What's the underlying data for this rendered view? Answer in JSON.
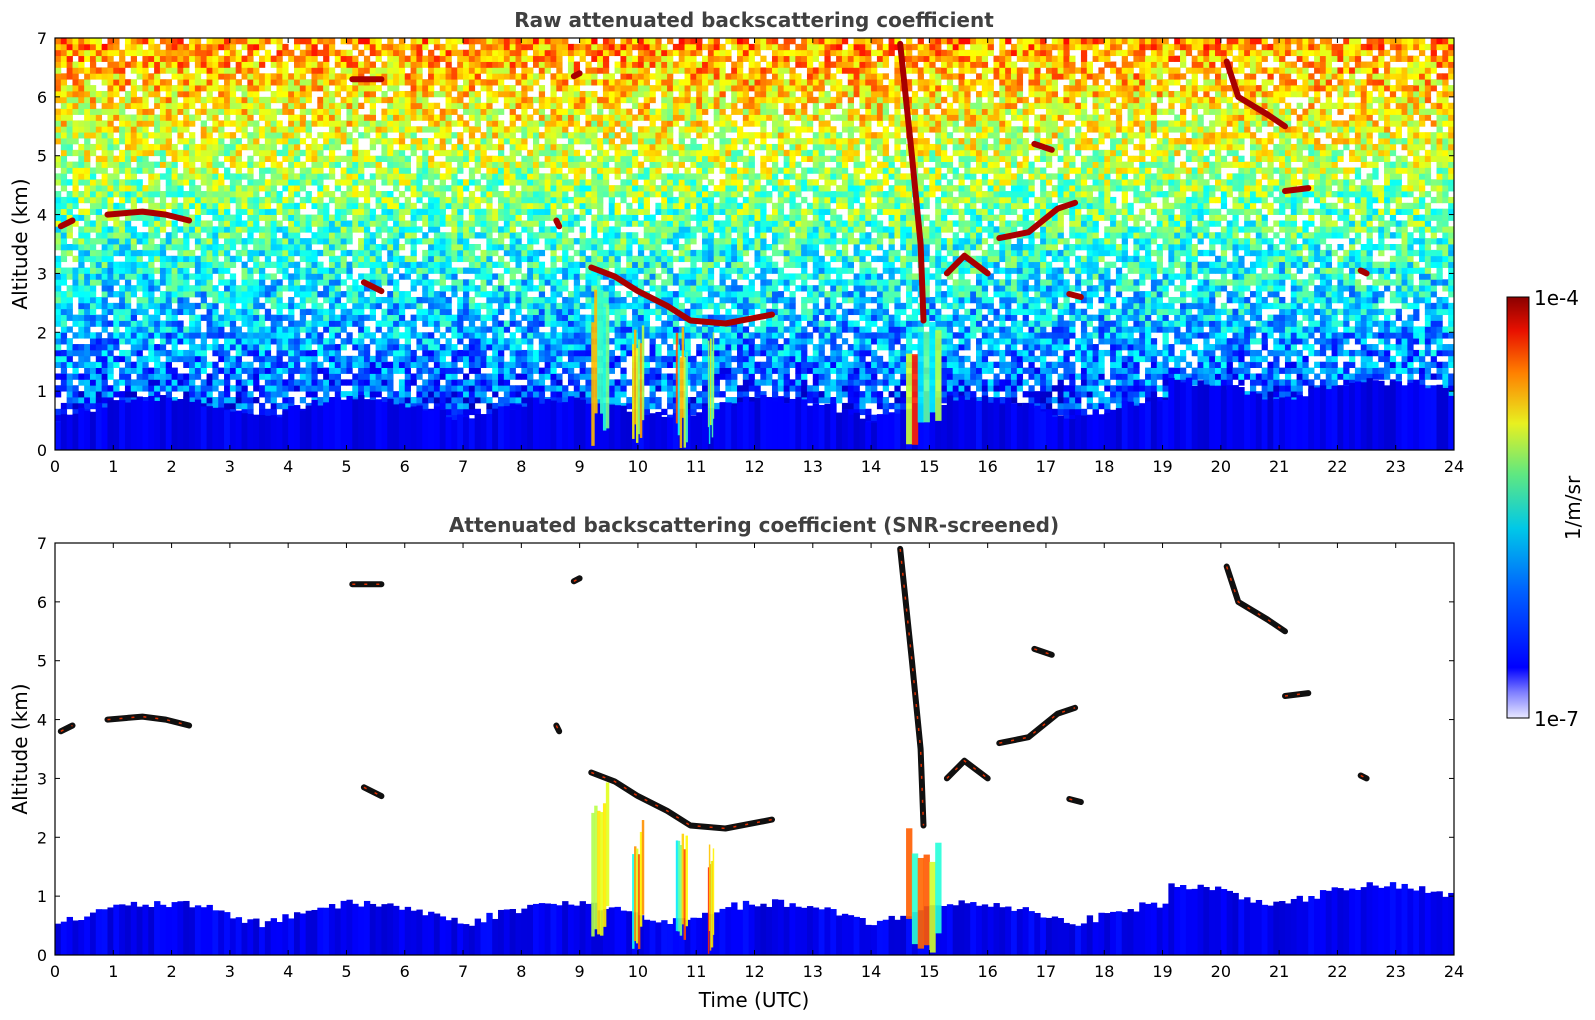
{
  "chart_data": [
    {
      "type": "heatmap",
      "title": "Raw attenuated backscattering coefficient",
      "xlabel": "",
      "ylabel": "Altitude (km)",
      "xlim": [
        0,
        24
      ],
      "ylim": [
        0,
        7
      ],
      "x_ticks": [
        0,
        1,
        2,
        3,
        4,
        5,
        6,
        7,
        8,
        9,
        10,
        11,
        12,
        13,
        14,
        15,
        16,
        17,
        18,
        19,
        20,
        21,
        22,
        23,
        24
      ],
      "y_ticks": [
        0,
        1,
        2,
        3,
        4,
        5,
        6,
        7
      ],
      "screened": false,
      "grid": false,
      "features": [
        {
          "kind": "cloud-layer",
          "points": [
            [
              0.1,
              3.8
            ],
            [
              0.3,
              3.9
            ]
          ]
        },
        {
          "kind": "cloud-layer",
          "points": [
            [
              0.9,
              4.0
            ],
            [
              1.5,
              4.05
            ],
            [
              1.9,
              4.0
            ],
            [
              2.3,
              3.9
            ]
          ]
        },
        {
          "kind": "cloud-layer",
          "points": [
            [
              5.1,
              6.3
            ],
            [
              5.6,
              6.3
            ]
          ]
        },
        {
          "kind": "cloud-layer",
          "points": [
            [
              5.3,
              2.85
            ],
            [
              5.6,
              2.7
            ]
          ]
        },
        {
          "kind": "cloud-layer",
          "points": [
            [
              8.6,
              3.9
            ],
            [
              8.65,
              3.8
            ]
          ]
        },
        {
          "kind": "cloud-layer",
          "points": [
            [
              8.9,
              6.35
            ],
            [
              9.0,
              6.4
            ]
          ]
        },
        {
          "kind": "cloud-layer",
          "points": [
            [
              9.2,
              3.1
            ],
            [
              9.6,
              2.95
            ],
            [
              10.0,
              2.7
            ],
            [
              10.5,
              2.45
            ],
            [
              10.9,
              2.2
            ],
            [
              11.5,
              2.15
            ],
            [
              12.3,
              2.3
            ]
          ]
        },
        {
          "kind": "cloud-layer",
          "points": [
            [
              14.5,
              6.9
            ],
            [
              14.7,
              5.0
            ],
            [
              14.85,
              3.5
            ],
            [
              14.9,
              2.2
            ]
          ]
        },
        {
          "kind": "cloud-layer",
          "points": [
            [
              15.3,
              3.0
            ],
            [
              15.6,
              3.3
            ],
            [
              16.0,
              3.0
            ]
          ]
        },
        {
          "kind": "cloud-layer",
          "points": [
            [
              16.2,
              3.6
            ],
            [
              16.7,
              3.7
            ],
            [
              17.2,
              4.1
            ],
            [
              17.5,
              4.2
            ]
          ]
        },
        {
          "kind": "cloud-layer",
          "points": [
            [
              16.8,
              5.2
            ],
            [
              17.1,
              5.1
            ]
          ]
        },
        {
          "kind": "cloud-layer",
          "points": [
            [
              17.4,
              2.65
            ],
            [
              17.6,
              2.6
            ]
          ]
        },
        {
          "kind": "cloud-layer",
          "points": [
            [
              20.1,
              6.6
            ],
            [
              20.3,
              6.0
            ],
            [
              20.8,
              5.7
            ],
            [
              21.1,
              5.5
            ]
          ]
        },
        {
          "kind": "cloud-layer",
          "points": [
            [
              21.1,
              4.4
            ],
            [
              21.5,
              4.45
            ]
          ]
        },
        {
          "kind": "cloud-layer",
          "points": [
            [
              22.4,
              3.05
            ],
            [
              22.5,
              3.0
            ]
          ]
        },
        {
          "kind": "precipitation",
          "x_range": [
            9.2,
            9.5
          ],
          "top": 3.0
        },
        {
          "kind": "precipitation",
          "x_range": [
            9.9,
            10.1
          ],
          "top": 2.3
        },
        {
          "kind": "precipitation",
          "x_range": [
            10.65,
            10.85
          ],
          "top": 2.2
        },
        {
          "kind": "precipitation",
          "x_range": [
            11.2,
            11.3
          ],
          "top": 2.1
        },
        {
          "kind": "precipitation",
          "x_range": [
            14.6,
            15.2
          ],
          "top": 2.2
        }
      ]
    },
    {
      "type": "heatmap",
      "title": "Attenuated backscattering coefficient (SNR-screened)",
      "xlabel": "Time (UTC)",
      "ylabel": "Altitude (km)",
      "xlim": [
        0,
        24
      ],
      "ylim": [
        0,
        7
      ],
      "x_ticks": [
        0,
        1,
        2,
        3,
        4,
        5,
        6,
        7,
        8,
        9,
        10,
        11,
        12,
        13,
        14,
        15,
        16,
        17,
        18,
        19,
        20,
        21,
        22,
        23,
        24
      ],
      "y_ticks": [
        0,
        1,
        2,
        3,
        4,
        5,
        6,
        7
      ],
      "screened": true,
      "grid": false
    }
  ],
  "colorbar": {
    "label": "1/m/sr",
    "tick_max": "1e-4",
    "tick_min": "1e-7",
    "colormap": "jet",
    "scale": "log"
  },
  "colors": {
    "low": "#0000ff",
    "mid": "#30d0d0",
    "high": "#ffd000",
    "max": "#8b0000",
    "title": "#404040"
  }
}
